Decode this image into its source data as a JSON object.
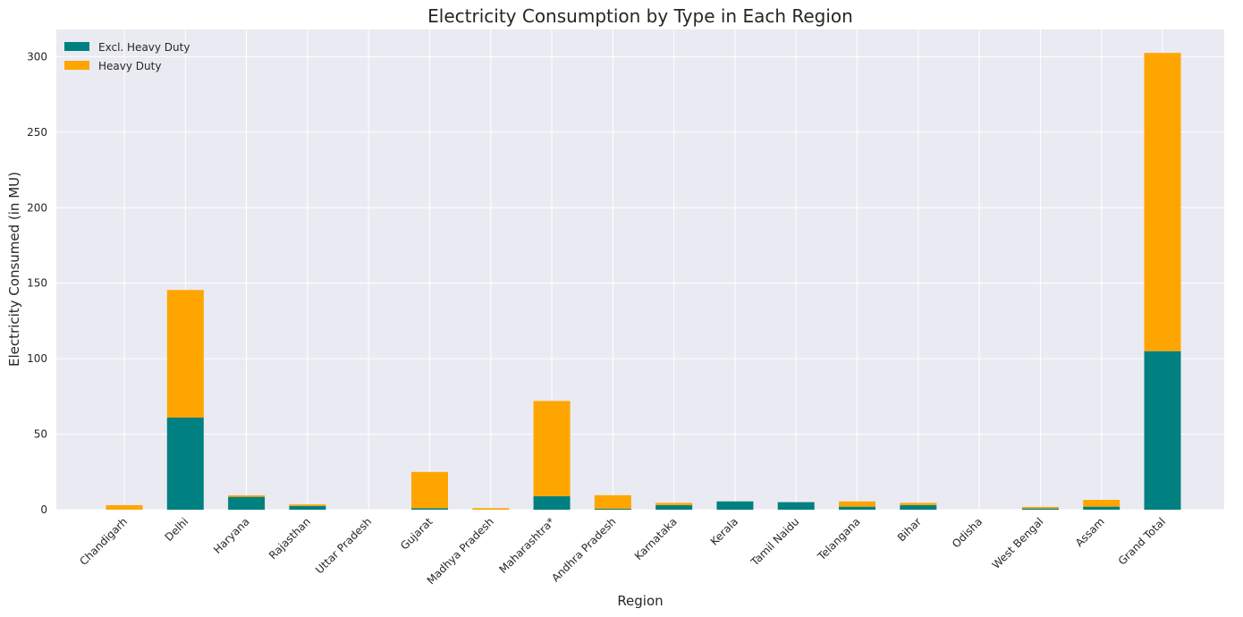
{
  "chart_data": {
    "type": "bar",
    "stacked": true,
    "title": "Electricity Consumption by Type in Each Region",
    "xlabel": "Region",
    "ylabel": "Electricity Consumed (in MU)",
    "ylim": [
      0,
      318
    ],
    "yticks": [
      0,
      50,
      100,
      150,
      200,
      250,
      300
    ],
    "grid": true,
    "legend_position": "top-left",
    "categories": [
      "Chandigarh",
      "Delhi",
      "Haryana",
      "Rajasthan",
      "Uttar Pradesh",
      "Gujarat",
      "Madhya Pradesh",
      "Maharashtra*",
      "Andhra Pradesh",
      "Karnataka",
      "Kerala",
      "Tamil Naidu",
      "Telangana",
      "Bihar",
      "Odisha",
      "West Bengal",
      "Assam",
      "Grand Total"
    ],
    "series": [
      {
        "name": "Excl. Heavy Duty",
        "color": "#008080",
        "values": [
          0,
          61,
          8.5,
          2.5,
          0,
          1,
          0,
          9,
          0.6,
          3,
          5.5,
          5,
          2,
          3,
          0,
          0.8,
          2,
          105
        ]
      },
      {
        "name": "Heavy Duty",
        "color": "#FFA500",
        "values": [
          3,
          84.5,
          1,
          1,
          0,
          24,
          1,
          63,
          9,
          1.5,
          0,
          0,
          3.5,
          1.5,
          0,
          1,
          4.5,
          197.5
        ]
      }
    ],
    "plot_background": "#EAEAF2",
    "grid_color": "#ffffff"
  }
}
